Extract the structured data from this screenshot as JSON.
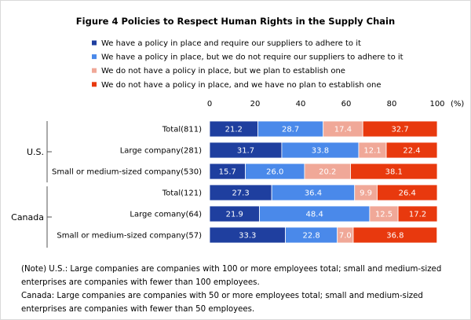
{
  "chart_data": {
    "type": "bar",
    "orientation": "horizontal",
    "stacked": true,
    "title": "Figure 4 Policies to Respect Human Rights in the Supply Chain",
    "axis": {
      "ticks": [
        0,
        20,
        40,
        60,
        80,
        100
      ],
      "unit_label": "(%)",
      "xlim": [
        0,
        100
      ]
    },
    "series": [
      {
        "name": "We have a policy in place and require our suppliers to adhere to it",
        "color": "#1f3f9f"
      },
      {
        "name": "We have a policy in place, but we do not require our suppliers to adhere to it",
        "color": "#4a89ea"
      },
      {
        "name": "We do not have a policy in place, but we plan to establish one",
        "color": "#f0a898"
      },
      {
        "name": "We do not have a policy in place, and we have no plan to establish one",
        "color": "#e8390e"
      }
    ],
    "groups": [
      {
        "name": "U.S.",
        "rows": [
          {
            "label": "Total(811)",
            "values": [
              21.2,
              28.7,
              17.4,
              32.7
            ]
          },
          {
            "label": "Large company(281)",
            "values": [
              31.7,
              33.8,
              12.1,
              22.4
            ]
          },
          {
            "label": "Small or medium-sized company(530)",
            "values": [
              15.7,
              26.0,
              20.2,
              38.1
            ]
          }
        ]
      },
      {
        "name": "Canada",
        "rows": [
          {
            "label": "Total(121)",
            "values": [
              27.3,
              36.4,
              9.9,
              26.4
            ]
          },
          {
            "label": "Large comany(64)",
            "values": [
              21.9,
              48.4,
              12.5,
              17.2
            ]
          },
          {
            "label": "Small or medium-sized company(57)",
            "values": [
              33.3,
              22.8,
              7.0,
              36.8
            ]
          }
        ]
      }
    ]
  },
  "notes": {
    "line1": "(Note) U.S.: Large companies are companies with 100 or more employees total; small and medium-sized",
    "line2": "enterprises are companies with fewer than 100 employees.",
    "line3": "Canada: Large companies are companies with 50 or more employees total; small and medium-sized",
    "line4": "enterprises are companies with fewer than 50 employees."
  }
}
